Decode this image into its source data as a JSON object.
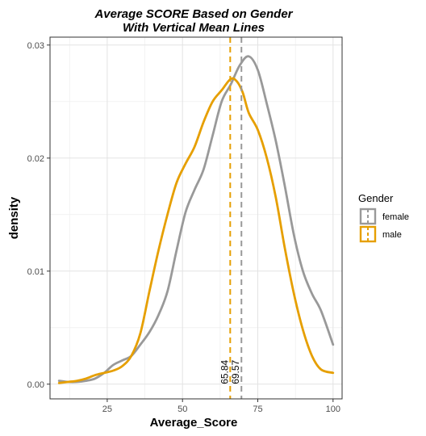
{
  "chart_data": {
    "type": "line",
    "title_line1": "Average SCORE Based on Gender",
    "title_line2": "With Vertical Mean Lines",
    "xlabel": "Average_Score",
    "ylabel": "density",
    "xlim": [
      6,
      103
    ],
    "ylim": [
      -0.0013,
      0.0307
    ],
    "xticks": [
      25,
      50,
      75,
      100
    ],
    "xtick_labels": [
      "25",
      "50",
      "75",
      "100"
    ],
    "yticks": [
      0.0,
      0.01,
      0.02,
      0.03
    ],
    "ytick_labels": [
      "0.00",
      "0.01",
      "0.02",
      "0.03"
    ],
    "grid": true,
    "legend_title": "Gender",
    "legend_position": "right",
    "series": [
      {
        "name": "female",
        "color": "#999999",
        "x": [
          9,
          12,
          15,
          18,
          21,
          24,
          27,
          30,
          33,
          36,
          39,
          42,
          45,
          48,
          51,
          54,
          57,
          60,
          63,
          66,
          69,
          72,
          75,
          78,
          81,
          84,
          87,
          90,
          93,
          96,
          100
        ],
        "y": [
          0.0003,
          0.0002,
          0.0002,
          0.0003,
          0.0005,
          0.001,
          0.0017,
          0.0021,
          0.0025,
          0.0035,
          0.0046,
          0.0061,
          0.0082,
          0.0118,
          0.0152,
          0.0172,
          0.019,
          0.022,
          0.025,
          0.0265,
          0.0282,
          0.029,
          0.0278,
          0.0248,
          0.0215,
          0.0175,
          0.0132,
          0.01,
          0.008,
          0.0065,
          0.0035
        ]
      },
      {
        "name": "male",
        "color": "#E69F00",
        "x": [
          9,
          12,
          15,
          18,
          21,
          24,
          27,
          30,
          33,
          36,
          39,
          42,
          45,
          48,
          51,
          54,
          57,
          60,
          63,
          66,
          68,
          70,
          72,
          75,
          78,
          81,
          84,
          87,
          90,
          93,
          96,
          100
        ],
        "y": [
          0.0001,
          0.0002,
          0.0003,
          0.0005,
          0.0008,
          0.001,
          0.0012,
          0.0016,
          0.0025,
          0.0045,
          0.0082,
          0.0118,
          0.015,
          0.0178,
          0.0195,
          0.021,
          0.0232,
          0.025,
          0.026,
          0.027,
          0.0268,
          0.0258,
          0.024,
          0.0225,
          0.02,
          0.0165,
          0.012,
          0.008,
          0.0048,
          0.0025,
          0.0013,
          0.001
        ]
      }
    ],
    "mean_lines": [
      {
        "name": "female",
        "x": 69.57,
        "label": "69.57",
        "color": "#999999"
      },
      {
        "name": "male",
        "x": 65.84,
        "label": "65.84",
        "color": "#E69F00"
      }
    ]
  }
}
